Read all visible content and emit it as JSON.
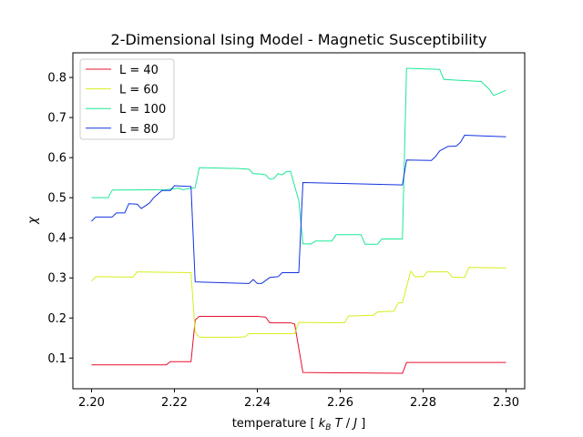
{
  "chart_data": {
    "type": "line",
    "title": "2-Dimensional Ising Model - Magnetic Susceptibility",
    "xlabel": "temperature [ k_B T / J ]",
    "ylabel": "χ",
    "xlim": [
      2.1955,
      2.3045
    ],
    "ylim": [
      0.0235,
      0.8615
    ],
    "xticks": [
      2.2,
      2.22,
      2.24,
      2.26,
      2.28,
      2.3
    ],
    "xtick_labels": [
      "2.20",
      "2.22",
      "2.24",
      "2.26",
      "2.28",
      "2.30"
    ],
    "yticks": [
      0.1,
      0.2,
      0.3,
      0.4,
      0.5,
      0.6,
      0.7,
      0.8
    ],
    "ytick_labels": [
      "0.1",
      "0.2",
      "0.3",
      "0.4",
      "0.5",
      "0.6",
      "0.7",
      "0.8"
    ],
    "grid": false,
    "legend_position": "top-left",
    "series": [
      {
        "name": "L = 40",
        "color": "#e8102e",
        "points": [
          [
            2.2,
            0.083
          ],
          [
            2.218,
            0.083
          ],
          [
            2.219,
            0.091
          ],
          [
            2.224,
            0.091
          ],
          [
            2.225,
            0.195
          ],
          [
            2.226,
            0.204
          ],
          [
            2.24,
            0.204
          ],
          [
            2.242,
            0.202
          ],
          [
            2.243,
            0.188
          ],
          [
            2.248,
            0.188
          ],
          [
            2.249,
            0.185
          ],
          [
            2.251,
            0.064
          ],
          [
            2.275,
            0.062
          ],
          [
            2.276,
            0.089
          ],
          [
            2.3,
            0.089
          ]
        ]
      },
      {
        "name": "L = 60",
        "color": "#d8ee1c",
        "points": [
          [
            2.2,
            0.292
          ],
          [
            2.201,
            0.303
          ],
          [
            2.21,
            0.302
          ],
          [
            2.211,
            0.315
          ],
          [
            2.218,
            0.314
          ],
          [
            2.224,
            0.313
          ],
          [
            2.225,
            0.165
          ],
          [
            2.226,
            0.152
          ],
          [
            2.235,
            0.152
          ],
          [
            2.237,
            0.153
          ],
          [
            2.238,
            0.161
          ],
          [
            2.249,
            0.161
          ],
          [
            2.25,
            0.189
          ],
          [
            2.261,
            0.188
          ],
          [
            2.262,
            0.205
          ],
          [
            2.268,
            0.207
          ],
          [
            2.269,
            0.215
          ],
          [
            2.273,
            0.217
          ],
          [
            2.274,
            0.238
          ],
          [
            2.275,
            0.238
          ],
          [
            2.277,
            0.317
          ],
          [
            2.278,
            0.303
          ],
          [
            2.28,
            0.303
          ],
          [
            2.281,
            0.315
          ],
          [
            2.286,
            0.315
          ],
          [
            2.287,
            0.302
          ],
          [
            2.29,
            0.301
          ],
          [
            2.291,
            0.326
          ],
          [
            2.3,
            0.325
          ]
        ]
      },
      {
        "name": "L = 100",
        "color": "#1de895",
        "points": [
          [
            2.2,
            0.5
          ],
          [
            2.204,
            0.5
          ],
          [
            2.205,
            0.519
          ],
          [
            2.218,
            0.52
          ],
          [
            2.221,
            0.524
          ],
          [
            2.222,
            0.52
          ],
          [
            2.225,
            0.525
          ],
          [
            2.226,
            0.575
          ],
          [
            2.235,
            0.573
          ],
          [
            2.238,
            0.571
          ],
          [
            2.239,
            0.56
          ],
          [
            2.241,
            0.559
          ],
          [
            2.242,
            0.557
          ],
          [
            2.243,
            0.546
          ],
          [
            2.244,
            0.548
          ],
          [
            2.245,
            0.56
          ],
          [
            2.246,
            0.557
          ],
          [
            2.247,
            0.565
          ],
          [
            2.248,
            0.566
          ],
          [
            2.25,
            0.493
          ],
          [
            2.251,
            0.385
          ],
          [
            2.253,
            0.385
          ],
          [
            2.254,
            0.392
          ],
          [
            2.258,
            0.392
          ],
          [
            2.259,
            0.408
          ],
          [
            2.265,
            0.408
          ],
          [
            2.266,
            0.384
          ],
          [
            2.269,
            0.384
          ],
          [
            2.27,
            0.397
          ],
          [
            2.275,
            0.397
          ],
          [
            2.276,
            0.823
          ],
          [
            2.284,
            0.82
          ],
          [
            2.285,
            0.795
          ],
          [
            2.294,
            0.79
          ],
          [
            2.296,
            0.77
          ],
          [
            2.297,
            0.755
          ],
          [
            2.3,
            0.768
          ]
        ]
      },
      {
        "name": "L = 80",
        "color": "#1233e0",
        "points": [
          [
            2.2,
            0.441
          ],
          [
            2.201,
            0.452
          ],
          [
            2.205,
            0.452
          ],
          [
            2.206,
            0.462
          ],
          [
            2.208,
            0.462
          ],
          [
            2.209,
            0.485
          ],
          [
            2.211,
            0.484
          ],
          [
            2.212,
            0.473
          ],
          [
            2.214,
            0.487
          ],
          [
            2.215,
            0.5
          ],
          [
            2.217,
            0.518
          ],
          [
            2.219,
            0.518
          ],
          [
            2.22,
            0.53
          ],
          [
            2.224,
            0.528
          ],
          [
            2.225,
            0.29
          ],
          [
            2.238,
            0.286
          ],
          [
            2.239,
            0.296
          ],
          [
            2.24,
            0.286
          ],
          [
            2.241,
            0.286
          ],
          [
            2.243,
            0.301
          ],
          [
            2.245,
            0.303
          ],
          [
            2.246,
            0.313
          ],
          [
            2.25,
            0.313
          ],
          [
            2.251,
            0.538
          ],
          [
            2.275,
            0.532
          ],
          [
            2.276,
            0.594
          ],
          [
            2.282,
            0.593
          ],
          [
            2.283,
            0.603
          ],
          [
            2.284,
            0.617
          ],
          [
            2.286,
            0.628
          ],
          [
            2.288,
            0.629
          ],
          [
            2.289,
            0.638
          ],
          [
            2.29,
            0.656
          ],
          [
            2.3,
            0.652
          ]
        ]
      }
    ]
  }
}
